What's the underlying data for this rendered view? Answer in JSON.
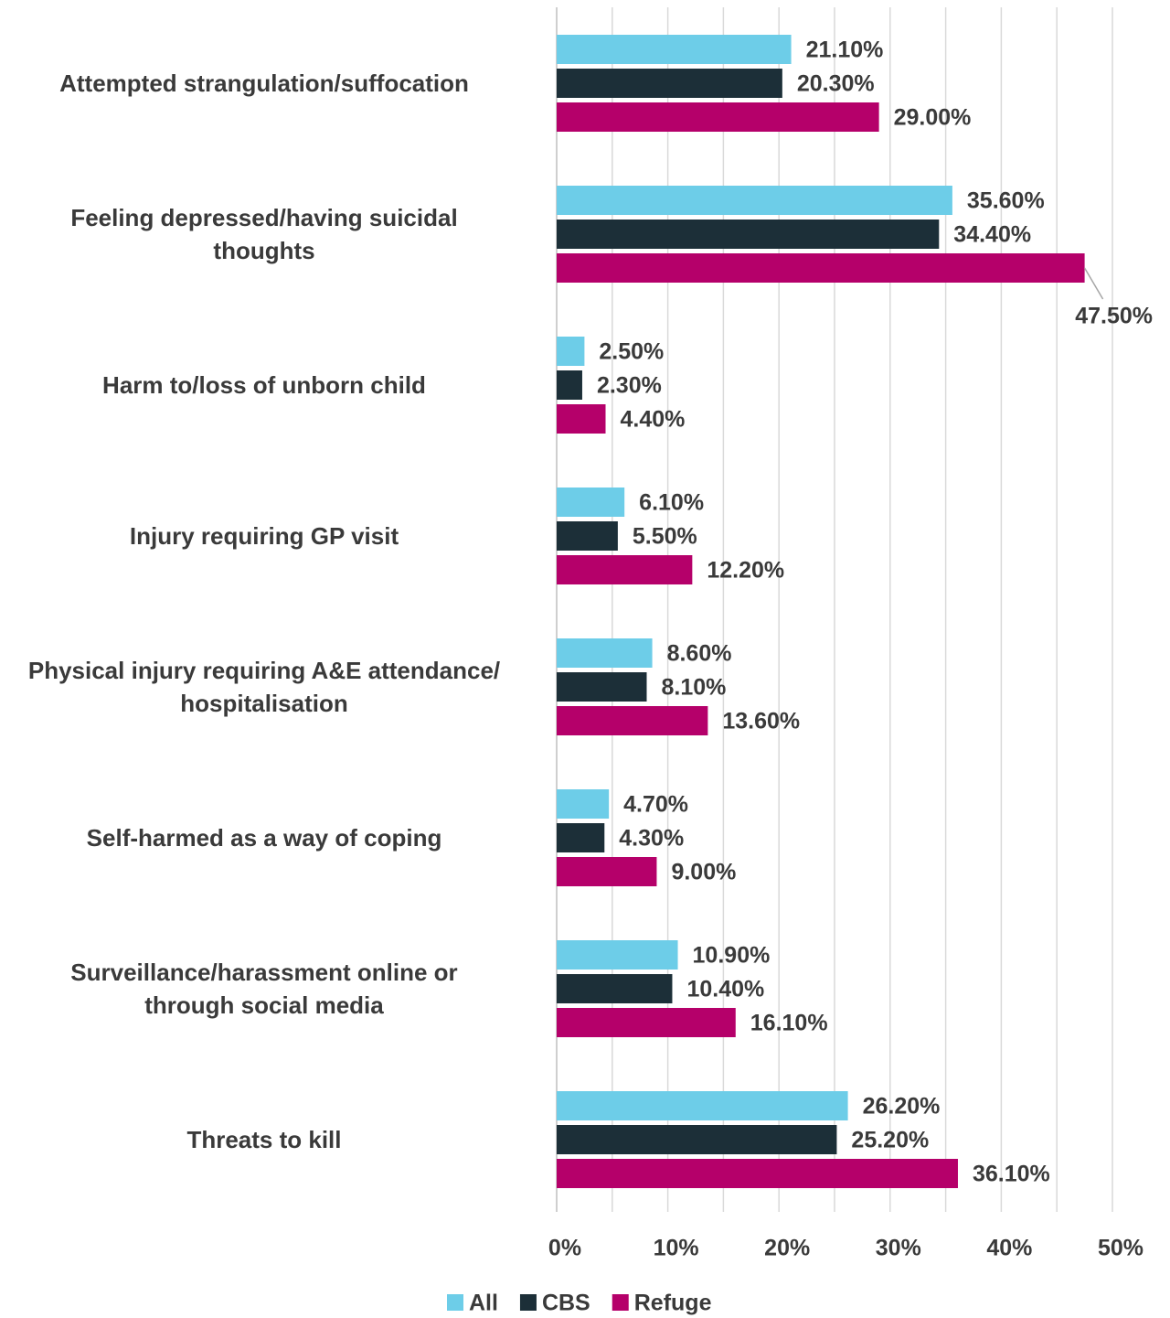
{
  "chart_data": {
    "type": "bar",
    "orientation": "horizontal",
    "categories": [
      "Attempted strangulation/suffocation",
      "Feeling depressed/having suicidal\nthoughts",
      "Harm to/loss of unborn child",
      "Injury requiring GP visit",
      "Physical injury requiring A&E attendance/\nhospitalisation",
      "Self-harmed as a way of coping",
      "Surveillance/harassment online or\nthrough social media",
      "Threats to kill"
    ],
    "series": [
      {
        "name": "All",
        "color": "#6dcde8",
        "values": [
          21.1,
          35.6,
          2.5,
          6.1,
          8.6,
          4.7,
          10.9,
          26.2
        ],
        "value_labels": [
          "21.10%",
          "35.60%",
          "2.50%",
          "6.10%",
          "8.60%",
          "4.70%",
          "10.90%",
          "26.20%"
        ]
      },
      {
        "name": "CBS",
        "color": "#1c2f38",
        "values": [
          20.3,
          34.4,
          2.3,
          5.5,
          8.1,
          4.3,
          10.4,
          25.2
        ],
        "value_labels": [
          "20.30%",
          "34.40%",
          "2.30%",
          "5.50%",
          "8.10%",
          "4.30%",
          "10.40%",
          "25.20%"
        ]
      },
      {
        "name": "Refuge",
        "color": "#b5006a",
        "values": [
          29.0,
          47.5,
          4.4,
          12.2,
          13.6,
          9.0,
          16.1,
          36.1
        ],
        "value_labels": [
          "29.00%",
          "47.50%",
          "4.40%",
          "12.20%",
          "13.60%",
          "9.00%",
          "16.10%",
          "36.10%"
        ]
      }
    ],
    "xlim": [
      0,
      50
    ],
    "xticks": [
      {
        "value": 0,
        "label": "0%"
      },
      {
        "value": 10,
        "label": "10%"
      },
      {
        "value": 20,
        "label": "20%"
      },
      {
        "value": 30,
        "label": "30%"
      },
      {
        "value": 40,
        "label": "40%"
      },
      {
        "value": 50,
        "label": "50%"
      }
    ],
    "minor_xticks": [
      5,
      15,
      25,
      35,
      45
    ],
    "grid": true,
    "legend": "bottom"
  }
}
